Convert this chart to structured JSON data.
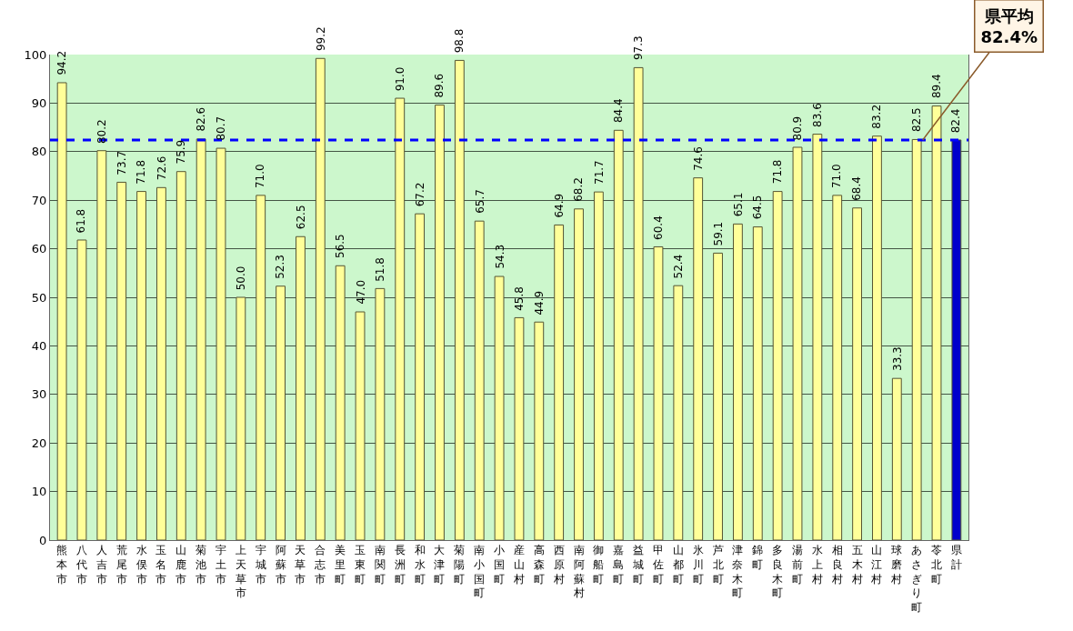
{
  "chart_data": {
    "type": "bar",
    "categories": [
      "熊本市",
      "八代市",
      "人吉市",
      "荒尾市",
      "水俣市",
      "玉名市",
      "山鹿市",
      "菊池市",
      "宇土市",
      "上天草市",
      "宇城市",
      "阿蘇市",
      "天草市",
      "合志市",
      "美里町",
      "玉東町",
      "南関町",
      "長洲町",
      "和水町",
      "大津町",
      "菊陽町",
      "南小国町",
      "小国町",
      "産山村",
      "高森町",
      "西原村",
      "南阿蘇村",
      "御船町",
      "嘉島町",
      "益城町",
      "甲佐町",
      "山都町",
      "氷川町",
      "芦北町",
      "津奈木町",
      "錦町",
      "多良木町",
      "湯前町",
      "水上村",
      "相良村",
      "五木村",
      "山江村",
      "球磨村",
      "あさぎり町",
      "苓北町",
      "県計"
    ],
    "values": [
      94.2,
      61.8,
      80.2,
      73.7,
      71.8,
      72.6,
      75.9,
      82.6,
      80.7,
      50.0,
      71.0,
      52.3,
      62.5,
      99.2,
      56.5,
      47.0,
      51.8,
      91.0,
      67.2,
      89.6,
      98.8,
      65.7,
      54.3,
      45.8,
      44.9,
      64.9,
      68.2,
      71.7,
      84.4,
      97.3,
      60.4,
      52.4,
      74.6,
      59.1,
      65.1,
      64.5,
      71.8,
      80.9,
      83.6,
      71.0,
      68.4,
      83.2,
      33.3,
      82.5,
      89.4,
      82.4
    ],
    "colors": [
      "#ffff99",
      "#ffff99",
      "#ffff99",
      "#ffff99",
      "#ffff99",
      "#ffff99",
      "#ffff99",
      "#ffff99",
      "#ffff99",
      "#ffff99",
      "#ffff99",
      "#ffff99",
      "#ffff99",
      "#ffff99",
      "#ffff99",
      "#ffff99",
      "#ffff99",
      "#ffff99",
      "#ffff99",
      "#ffff99",
      "#ffff99",
      "#ffff99",
      "#ffff99",
      "#ffff99",
      "#ffff99",
      "#ffff99",
      "#ffff99",
      "#ffff99",
      "#ffff99",
      "#ffff99",
      "#ffff99",
      "#ffff99",
      "#ffff99",
      "#ffff99",
      "#ffff99",
      "#ffff99",
      "#ffff99",
      "#ffff99",
      "#ffff99",
      "#ffff99",
      "#ffff99",
      "#ffff99",
      "#ffff99",
      "#ffff99",
      "#ffff99",
      "#0000cc"
    ],
    "value_labels": [
      "94.2",
      "61.8",
      "80.2",
      "73.7",
      "71.8",
      "72.6",
      "75.9",
      "82.6",
      "80.7",
      "50.0",
      "71.0",
      "52.3",
      "62.5",
      "99.2",
      "56.5",
      "47.0",
      "51.8",
      "91.0",
      "67.2",
      "89.6",
      "98.8",
      "65.7",
      "54.3",
      "45.8",
      "44.9",
      "64.9",
      "68.2",
      "71.7",
      "84.4",
      "97.3",
      "60.4",
      "52.4",
      "74.6",
      "59.1",
      "65.1",
      "64.5",
      "71.8",
      "80.9",
      "83.6",
      "71.0",
      "68.4",
      "83.2",
      "33.3",
      "82.5",
      "89.4",
      "82.4"
    ],
    "ylim": [
      0,
      100
    ],
    "yticks": [
      0,
      10,
      20,
      30,
      40,
      50,
      60,
      70,
      80,
      90,
      100
    ],
    "grid": "y",
    "ref_lines": [
      {
        "axis": "y",
        "value": 82.4,
        "label": "県平均\n82.4%",
        "color": "#0000ff",
        "line_style": "dashed"
      }
    ]
  }
}
